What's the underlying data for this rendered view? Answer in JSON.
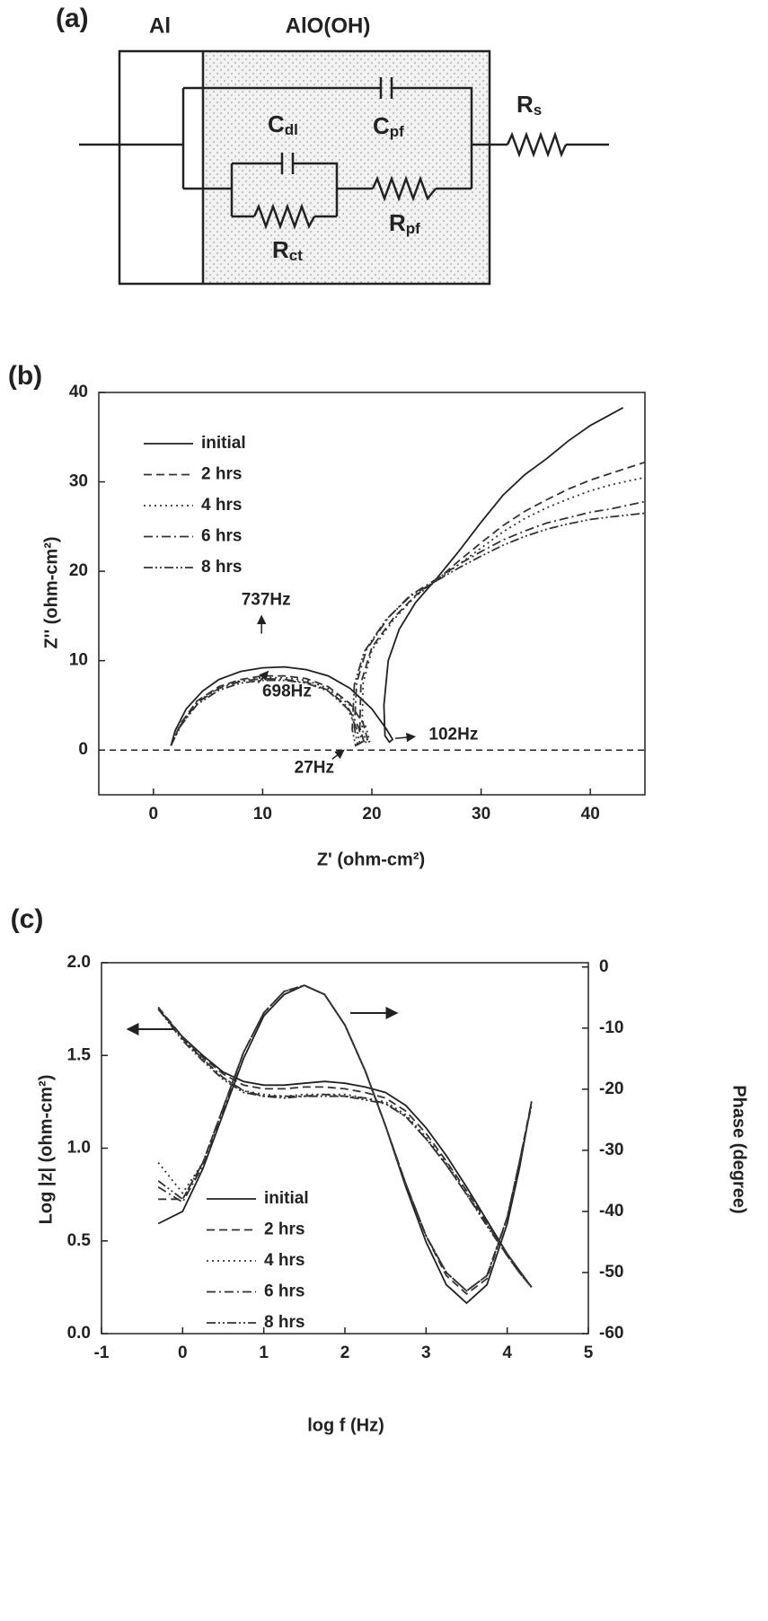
{
  "diagram": {
    "panel_label": "(a)",
    "layer_labels": [
      "Al",
      "AlO(OH)"
    ],
    "labels": [
      {
        "main": "C",
        "sub": "dl"
      },
      {
        "main": "C",
        "sub": "pf"
      },
      {
        "main": "R",
        "sub": "s"
      },
      {
        "main": "R",
        "sub": "pf"
      },
      {
        "main": "R",
        "sub": "ct"
      }
    ]
  },
  "chart_data": [
    {
      "type": "line",
      "panel_label": "(b)",
      "xlabel": "Z' (ohm-cm²)",
      "ylabel": "Z'' (ohm-cm²)",
      "xlim": [
        -5,
        45
      ],
      "xticks": [
        0,
        10,
        20,
        30,
        40
      ],
      "ylim": [
        -5,
        40
      ],
      "yticks": [
        0,
        10,
        20,
        30,
        40
      ],
      "grid": false,
      "legend": "upper left",
      "hline": 0,
      "series": [
        {
          "name": "initial",
          "color": "#222222",
          "style": "solid",
          "x": [
            1.6,
            2,
            3,
            4.5,
            6,
            8,
            10,
            12,
            14,
            16,
            18,
            20,
            21.3,
            21.9,
            21.6,
            21.2,
            21.1,
            21.5,
            22.5,
            24,
            26,
            28,
            30,
            32,
            34,
            36,
            38,
            40,
            43
          ],
          "values": [
            0.5,
            2.2,
            4.6,
            6.6,
            7.9,
            8.8,
            9.2,
            9.3,
            9.0,
            8.3,
            6.9,
            4.6,
            2.4,
            1.2,
            0.9,
            1.6,
            5,
            10,
            13.5,
            16.5,
            19.3,
            22.3,
            25.5,
            28.5,
            30.8,
            32.6,
            34.6,
            36.3,
            38.3
          ]
        },
        {
          "name": "2 hrs",
          "color": "#333333",
          "style": "dashed",
          "x": [
            1.6,
            2.5,
            4,
            6,
            8,
            10,
            12,
            14,
            16,
            18,
            19.2,
            19.6,
            19.3,
            18.9,
            19,
            20,
            22,
            24,
            26,
            28,
            30,
            32,
            34,
            36,
            38,
            40,
            42,
            45
          ],
          "values": [
            0.5,
            3,
            5.5,
            7.1,
            7.9,
            8.3,
            8.3,
            8.0,
            7.1,
            5.2,
            3,
            1.2,
            0.8,
            2.5,
            7.5,
            11.5,
            14.8,
            17.3,
            19.1,
            21.2,
            23.2,
            25.1,
            26.7,
            28,
            29.2,
            30.2,
            31,
            32.2
          ]
        },
        {
          "name": "4 hrs",
          "color": "#333333",
          "style": "dotted",
          "x": [
            1.6,
            2.5,
            4,
            6,
            8,
            10,
            12,
            14,
            16,
            18,
            19.4,
            19.8,
            19.5,
            19.1,
            19.2,
            20,
            22,
            24,
            26,
            28,
            30,
            32,
            34,
            36,
            38,
            40,
            42,
            45
          ],
          "values": [
            0.5,
            2.9,
            5.4,
            7,
            7.8,
            8.1,
            8.1,
            7.8,
            6.9,
            5,
            2.8,
            1,
            0.7,
            2.5,
            7.5,
            11.2,
            14.6,
            17.2,
            19,
            20.8,
            22.6,
            24.4,
            25.9,
            27.1,
            28.1,
            29,
            29.7,
            30.5
          ]
        },
        {
          "name": "6 hrs",
          "color": "#333333",
          "style": "dashdot",
          "x": [
            1.6,
            2.5,
            4,
            6,
            8,
            10,
            12,
            14,
            16,
            17.8,
            18.8,
            19.1,
            18.7,
            18.4,
            18.6,
            19.5,
            21.5,
            23.5,
            26,
            28,
            30,
            32,
            34,
            36,
            38,
            40,
            42,
            45
          ],
          "values": [
            0.5,
            2.8,
            5.3,
            6.9,
            7.7,
            8.0,
            7.9,
            7.6,
            6.7,
            4.8,
            2.5,
            0.9,
            0.6,
            2.5,
            7.5,
            11.2,
            14.8,
            17.3,
            19.2,
            20.8,
            22.2,
            23.5,
            24.5,
            25.4,
            26,
            26.6,
            27,
            27.8
          ]
        },
        {
          "name": "8 hrs",
          "color": "#333333",
          "style": "dashdotdot",
          "x": [
            1.6,
            2.5,
            4,
            6,
            8,
            10,
            12,
            14,
            16,
            17.8,
            18.6,
            18.9,
            18.5,
            18.2,
            18.4,
            19.3,
            21.3,
            23.5,
            26,
            28,
            30,
            32,
            34,
            36,
            38,
            40,
            42,
            45
          ],
          "values": [
            0.5,
            2.7,
            5.1,
            6.7,
            7.5,
            7.8,
            7.8,
            7.5,
            6.6,
            4.6,
            2.4,
            0.8,
            0.5,
            2.3,
            7.3,
            11,
            14.6,
            17.2,
            19,
            20.4,
            21.7,
            22.9,
            23.9,
            24.7,
            25.3,
            25.8,
            26.1,
            26.5
          ]
        }
      ],
      "annotations": [
        {
          "text": "737Hz",
          "x": 9.9,
          "y": 9.2
        },
        {
          "text": "698Hz",
          "x": 10,
          "y": 7.8
        },
        {
          "text": "27Hz",
          "x": 19,
          "y": 0.8
        },
        {
          "text": "102Hz",
          "x": 21.8,
          "y": 1.2
        }
      ]
    },
    {
      "type": "line",
      "panel_label": "(c)",
      "xlabel": "log f (Hz)",
      "ylabel": "Log |z| (ohm-cm²)",
      "y2label": "Phase (degree)",
      "xlim": [
        -1,
        5
      ],
      "xticks": [
        -1,
        0,
        1,
        2,
        3,
        4,
        5
      ],
      "ylim": [
        0,
        2
      ],
      "yticks": [
        {
          "value": 0,
          "label": "0.0"
        },
        0.5,
        {
          "value": 1,
          "label": "1.0"
        },
        1.5,
        {
          "value": 2,
          "label": "2.0"
        }
      ],
      "y2lim": [
        -60,
        0.7
      ],
      "y2ticks": [
        -60,
        -50,
        -40,
        -30,
        -20,
        -10,
        0
      ],
      "grid": false,
      "legend": "lower center",
      "x": [
        -0.3,
        0,
        0.25,
        0.5,
        0.75,
        1,
        1.25,
        1.5,
        1.75,
        2,
        2.25,
        2.5,
        2.75,
        3,
        3.25,
        3.5,
        3.75,
        4,
        4.15,
        4.3
      ],
      "series": [
        {
          "name": "initial",
          "color": "#222222",
          "style": "solid",
          "values": [
            1.75,
            1.6,
            1.5,
            1.41,
            1.36,
            1.34,
            1.34,
            1.35,
            1.36,
            1.35,
            1.33,
            1.3,
            1.23,
            1.11,
            0.96,
            0.79,
            0.61,
            0.43,
            0.34,
            0.25
          ]
        },
        {
          "name": "2 hrs",
          "color": "#333333",
          "style": "dashed",
          "values": [
            1.76,
            1.6,
            1.49,
            1.4,
            1.34,
            1.32,
            1.32,
            1.33,
            1.33,
            1.32,
            1.3,
            1.27,
            1.2,
            1.08,
            0.93,
            0.77,
            0.6,
            0.43,
            0.34,
            0.25
          ]
        },
        {
          "name": "4 hrs",
          "color": "#333333",
          "style": "dotted",
          "values": [
            1.76,
            1.59,
            1.48,
            1.38,
            1.31,
            1.29,
            1.28,
            1.29,
            1.29,
            1.29,
            1.27,
            1.25,
            1.18,
            1.06,
            0.92,
            0.76,
            0.59,
            0.42,
            0.33,
            0.25
          ]
        },
        {
          "name": "6 hrs",
          "color": "#333333",
          "style": "dashdot",
          "values": [
            1.75,
            1.59,
            1.48,
            1.38,
            1.31,
            1.28,
            1.28,
            1.28,
            1.29,
            1.28,
            1.27,
            1.24,
            1.17,
            1.05,
            0.91,
            0.75,
            0.59,
            0.42,
            0.33,
            0.25
          ]
        },
        {
          "name": "8 hrs",
          "color": "#333333",
          "style": "dashdotdot",
          "values": [
            1.75,
            1.58,
            1.47,
            1.37,
            1.3,
            1.28,
            1.27,
            1.28,
            1.28,
            1.28,
            1.26,
            1.24,
            1.17,
            1.05,
            0.91,
            0.75,
            0.58,
            0.42,
            0.33,
            0.25
          ]
        },
        {
          "axis": "y2",
          "color": "#222222",
          "style": "solid",
          "values": [
            -42,
            -40,
            -33,
            -24,
            -15,
            -8,
            -4.5,
            -3,
            -4.5,
            -9.5,
            -17,
            -26,
            -36,
            -45,
            -52,
            -55,
            -52,
            -42,
            -33,
            -22
          ]
        },
        {
          "axis": "y2",
          "color": "#333333",
          "style": "dashed",
          "values": [
            -38,
            -38,
            -32,
            -23,
            -14,
            -7.5,
            -4,
            -3,
            -4.5,
            -9.5,
            -17,
            -26,
            -35.5,
            -44,
            -50.5,
            -53.5,
            -51,
            -41,
            -32,
            -22
          ]
        },
        {
          "axis": "y2",
          "color": "#333333",
          "style": "dotted",
          "values": [
            -32,
            -37,
            -32,
            -23,
            -14,
            -7.5,
            -4,
            -3,
            -4.5,
            -9.5,
            -17,
            -26,
            -35.5,
            -44,
            -50,
            -53,
            -50.5,
            -41,
            -32,
            -22.5
          ]
        },
        {
          "axis": "y2",
          "color": "#333333",
          "style": "dashdot",
          "values": [
            -36,
            -38.5,
            -32.5,
            -23.5,
            -14,
            -7.5,
            -4,
            -3,
            -4.5,
            -9.5,
            -17,
            -26,
            -35.5,
            -44,
            -50,
            -53,
            -50.5,
            -41,
            -32,
            -22.5
          ]
        },
        {
          "axis": "y2",
          "color": "#333333",
          "style": "dashdotdot",
          "values": [
            -35,
            -38,
            -32,
            -23,
            -14,
            -7.5,
            -4,
            -3,
            -4.5,
            -9.5,
            -17,
            -26,
            -35.5,
            -44,
            -50,
            -53,
            -50.5,
            -41,
            -32,
            -22.5
          ]
        }
      ]
    }
  ]
}
